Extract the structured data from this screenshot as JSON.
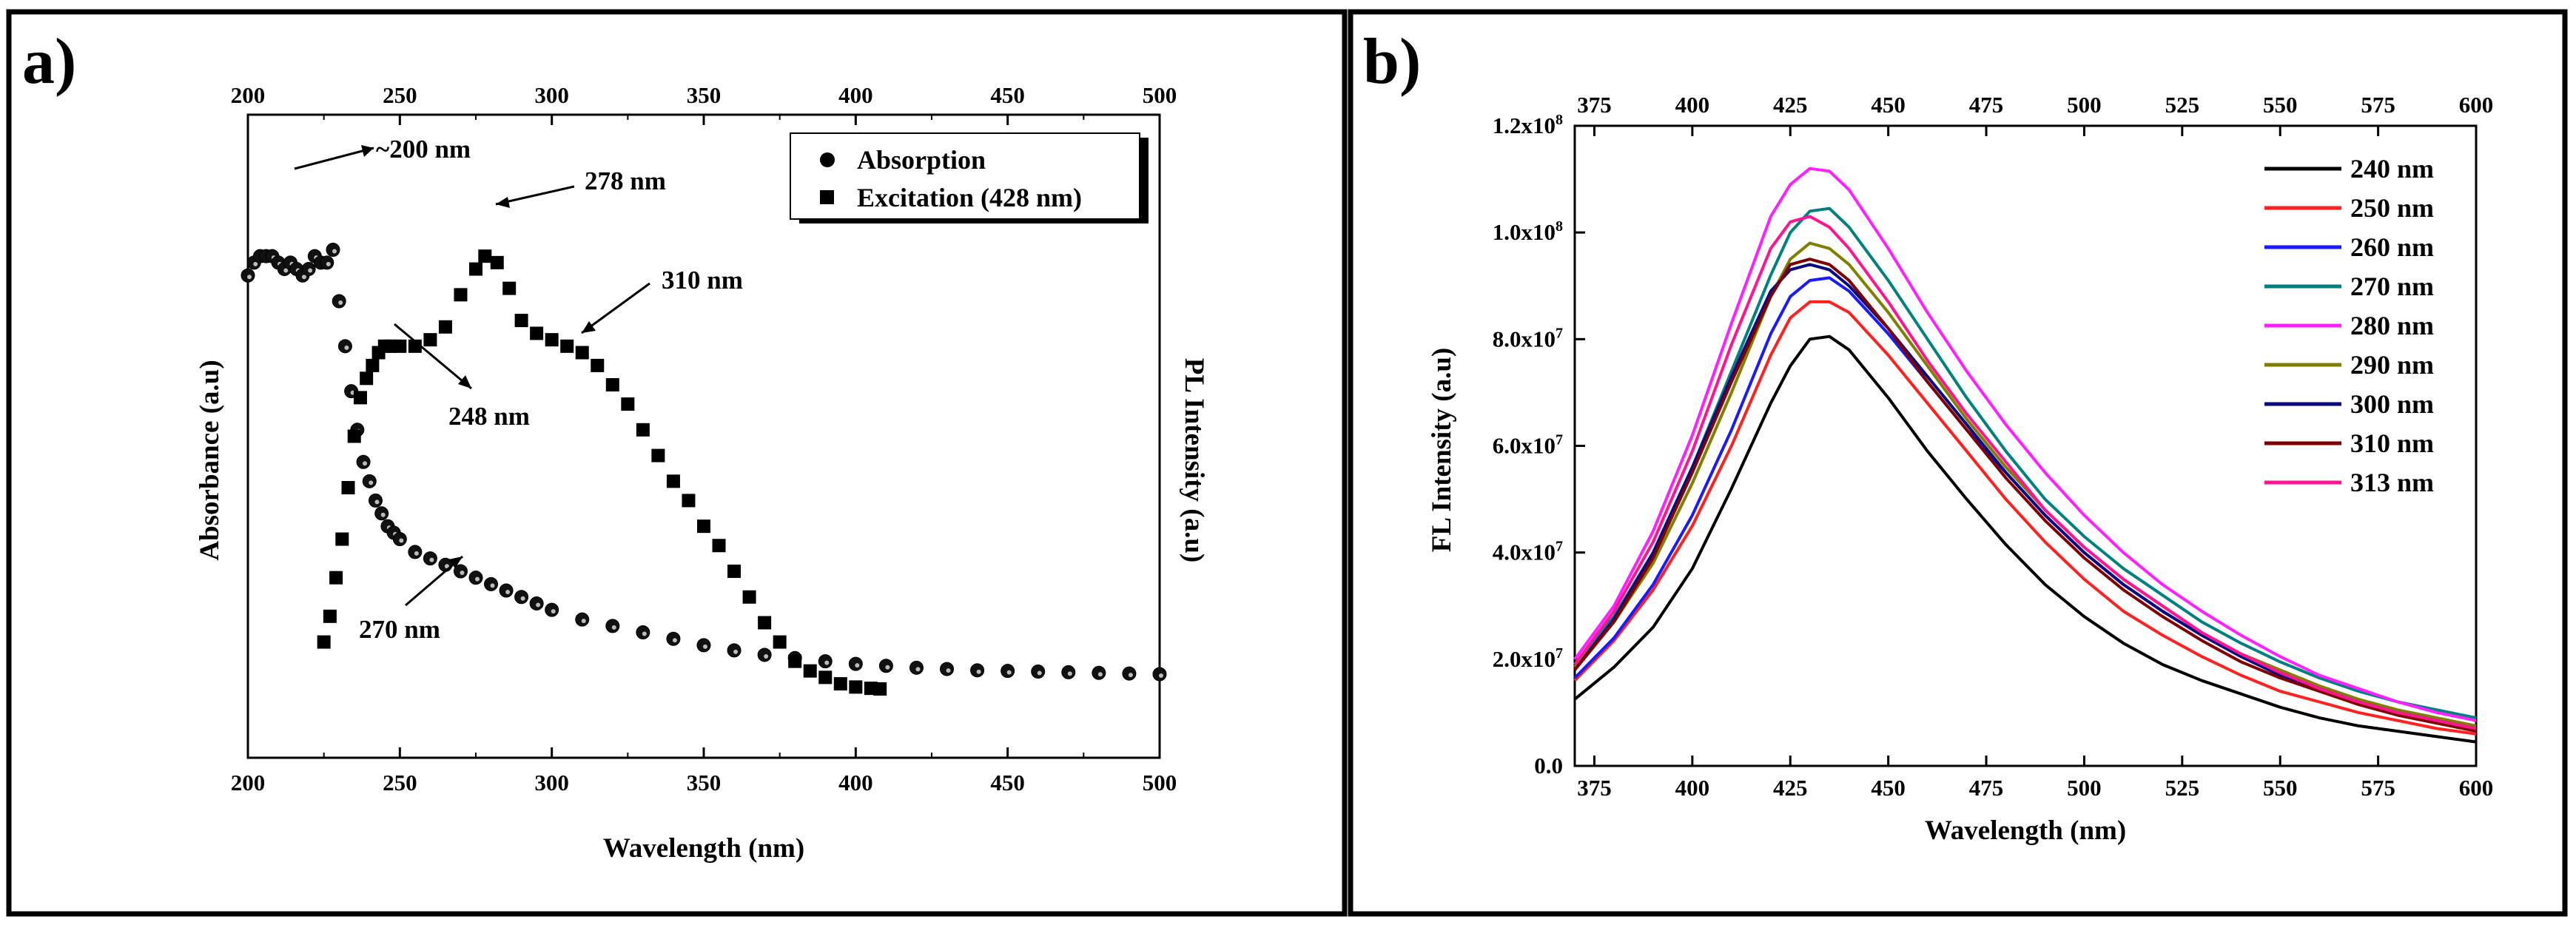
{
  "chart_data": [
    {
      "panel": "a)",
      "type": "scatter",
      "xlabel": "Wavelength (nm)",
      "ylabel_left": "Absorbance (a.u)",
      "ylabel_right": "PL Intensity (a.u)",
      "xlim": [
        200,
        500
      ],
      "xticks": [
        "200",
        "250",
        "300",
        "350",
        "400",
        "450",
        "500"
      ],
      "ylim": [
        0,
        100
      ],
      "legend_placement": "top-right",
      "series": [
        {
          "name": "Absorption",
          "marker": "circle",
          "points": [
            [
              200,
              75
            ],
            [
              202,
              77
            ],
            [
              204,
              78
            ],
            [
              206,
              78
            ],
            [
              208,
              78
            ],
            [
              210,
              77
            ],
            [
              212,
              76
            ],
            [
              214,
              77
            ],
            [
              216,
              76
            ],
            [
              218,
              75
            ],
            [
              220,
              76
            ],
            [
              222,
              78
            ],
            [
              224,
              77
            ],
            [
              226,
              77
            ],
            [
              228,
              79
            ],
            [
              230,
              71
            ],
            [
              232,
              64
            ],
            [
              234,
              57
            ],
            [
              236,
              51
            ],
            [
              238,
              46
            ],
            [
              240,
              43
            ],
            [
              242,
              40
            ],
            [
              244,
              38
            ],
            [
              246,
              36
            ],
            [
              248,
              35
            ],
            [
              250,
              34
            ],
            [
              255,
              32
            ],
            [
              260,
              31
            ],
            [
              265,
              30
            ],
            [
              270,
              29
            ],
            [
              275,
              28
            ],
            [
              280,
              27
            ],
            [
              285,
              26
            ],
            [
              290,
              25
            ],
            [
              295,
              24
            ],
            [
              300,
              23
            ],
            [
              310,
              21.5
            ],
            [
              320,
              20.5
            ],
            [
              330,
              19.5
            ],
            [
              340,
              18.5
            ],
            [
              350,
              17.5
            ],
            [
              360,
              16.7
            ],
            [
              370,
              16
            ],
            [
              380,
              15.5
            ],
            [
              390,
              15
            ],
            [
              400,
              14.6
            ],
            [
              410,
              14.3
            ],
            [
              420,
              14
            ],
            [
              430,
              13.8
            ],
            [
              440,
              13.6
            ],
            [
              450,
              13.5
            ],
            [
              460,
              13.4
            ],
            [
              470,
              13.3
            ],
            [
              480,
              13.2
            ],
            [
              490,
              13.1
            ],
            [
              500,
              13
            ]
          ]
        },
        {
          "name": "Excitation (428 nm)",
          "marker": "square",
          "points": [
            [
              225,
              18
            ],
            [
              227,
              22
            ],
            [
              229,
              28
            ],
            [
              231,
              34
            ],
            [
              233,
              42
            ],
            [
              235,
              50
            ],
            [
              237,
              56
            ],
            [
              239,
              59
            ],
            [
              241,
              61
            ],
            [
              243,
              63
            ],
            [
              245,
              64
            ],
            [
              247,
              64
            ],
            [
              250,
              64
            ],
            [
              255,
              64
            ],
            [
              260,
              65
            ],
            [
              265,
              67
            ],
            [
              270,
              72
            ],
            [
              275,
              76
            ],
            [
              278,
              78
            ],
            [
              282,
              77
            ],
            [
              286,
              73
            ],
            [
              290,
              68
            ],
            [
              295,
              66
            ],
            [
              300,
              65
            ],
            [
              305,
              64
            ],
            [
              310,
              63
            ],
            [
              315,
              61
            ],
            [
              320,
              58
            ],
            [
              325,
              55
            ],
            [
              330,
              51
            ],
            [
              335,
              47
            ],
            [
              340,
              43
            ],
            [
              345,
              40
            ],
            [
              350,
              36
            ],
            [
              355,
              33
            ],
            [
              360,
              29
            ],
            [
              365,
              25
            ],
            [
              370,
              21
            ],
            [
              375,
              18
            ],
            [
              380,
              15
            ],
            [
              385,
              13.5
            ],
            [
              390,
              12.5
            ],
            [
              395,
              11.5
            ],
            [
              400,
              11
            ],
            [
              405,
              10.8
            ],
            [
              408,
              10.7
            ]
          ]
        }
      ],
      "annotations": [
        {
          "text": "~200 nm",
          "x": 207,
          "y": 82
        },
        {
          "text": "278 nm",
          "x": 278,
          "y": 79
        },
        {
          "text": "310 nm",
          "x": 310,
          "y": 63
        },
        {
          "text": "248 nm",
          "x": 248,
          "y": 64
        },
        {
          "text": "270 nm",
          "x": 270,
          "y": 30
        }
      ]
    },
    {
      "panel": "b)",
      "type": "line",
      "xlabel": "Wavelength (nm)",
      "ylabel": "FL Intensity (a.u)",
      "xlim": [
        370,
        600
      ],
      "xticks": [
        "375",
        "400",
        "425",
        "450",
        "475",
        "500",
        "525",
        "550",
        "575",
        "600"
      ],
      "ylim": [
        0,
        120000000.0
      ],
      "yticks": [
        {
          "mant": "0.0",
          "exp": ""
        },
        {
          "mant": "2.0x10",
          "exp": "7"
        },
        {
          "mant": "4.0x10",
          "exp": "7"
        },
        {
          "mant": "6.0x10",
          "exp": "7"
        },
        {
          "mant": "8.0x10",
          "exp": "7"
        },
        {
          "mant": "1.0x10",
          "exp": "8"
        },
        {
          "mant": "1.2x10",
          "exp": "8"
        }
      ],
      "legend_placement": "top-right",
      "x": [
        370,
        380,
        390,
        400,
        410,
        420,
        425,
        430,
        435,
        440,
        450,
        460,
        470,
        480,
        490,
        500,
        510,
        520,
        530,
        540,
        550,
        560,
        570,
        580,
        590,
        600
      ],
      "series": [
        {
          "name": "240 nm",
          "color": "#000000",
          "values": [
            12.5,
            18.5,
            26,
            37,
            52,
            68,
            75,
            80,
            80.5,
            78,
            69,
            59,
            50,
            41.5,
            34,
            28,
            23,
            19,
            16,
            13.5,
            11,
            9,
            7.5,
            6.5,
            5.5,
            4.5
          ]
        },
        {
          "name": "250 nm",
          "color": "#ff2020",
          "values": [
            16,
            23.5,
            33,
            45,
            60,
            77,
            84,
            87,
            87,
            85,
            77,
            68,
            59,
            50,
            42,
            35,
            29,
            24.5,
            20.5,
            17,
            14,
            12,
            10,
            8.5,
            7,
            6
          ]
        },
        {
          "name": "260 nm",
          "color": "#1a1aff",
          "values": [
            16.5,
            24,
            34,
            47,
            63,
            81,
            88,
            91,
            91.5,
            89,
            81,
            72,
            63,
            55,
            47,
            40,
            34,
            29,
            24.5,
            20.5,
            17,
            14.5,
            12,
            10,
            8.5,
            7
          ]
        },
        {
          "name": "270 nm",
          "color": "#008080",
          "values": [
            19,
            28,
            40,
            56,
            74,
            92,
            100,
            104,
            104.5,
            101,
            91,
            80,
            69,
            59,
            50,
            43,
            37,
            32,
            27,
            23,
            19.5,
            16.5,
            14,
            12,
            10.5,
            9
          ]
        },
        {
          "name": "280 nm",
          "color": "#ff20ff",
          "values": [
            20,
            30,
            44,
            62,
            83,
            103,
            109,
            112,
            111.5,
            108,
            97,
            85,
            74,
            64,
            55,
            47,
            40,
            34,
            29,
            24.5,
            20.5,
            17,
            14.5,
            12,
            10,
            8.5
          ]
        },
        {
          "name": "290 nm",
          "color": "#808000",
          "values": [
            18.5,
            27,
            38,
            53,
            70,
            88,
            95,
            98,
            97,
            94,
            85,
            75,
            65,
            56,
            48,
            41,
            35,
            30,
            25,
            21,
            18,
            15,
            12.5,
            10.5,
            9,
            7.5
          ]
        },
        {
          "name": "300 nm",
          "color": "#0a0a80",
          "values": [
            18,
            27.5,
            40,
            56,
            73,
            89,
            93,
            94,
            93,
            90,
            82,
            73,
            64,
            55,
            47,
            40,
            34,
            29,
            24.5,
            20.5,
            17,
            14.5,
            12,
            10,
            8.5,
            7
          ]
        },
        {
          "name": "310 nm",
          "color": "#800000",
          "values": [
            18,
            27,
            39,
            55,
            72,
            88,
            94,
            95,
            94,
            91,
            82,
            72,
            63,
            54,
            46,
            39,
            33,
            28,
            23.5,
            19.5,
            16.5,
            14,
            11.5,
            9.5,
            8,
            6.5
          ]
        },
        {
          "name": "313 nm",
          "color": "#ff1493",
          "values": [
            19,
            29,
            42,
            59,
            79,
            97,
            102,
            103,
            101,
            97,
            87,
            76,
            66,
            57,
            48,
            41,
            35,
            30,
            25,
            21,
            17.5,
            14.5,
            12,
            10,
            8.5,
            7
          ]
        }
      ]
    }
  ]
}
